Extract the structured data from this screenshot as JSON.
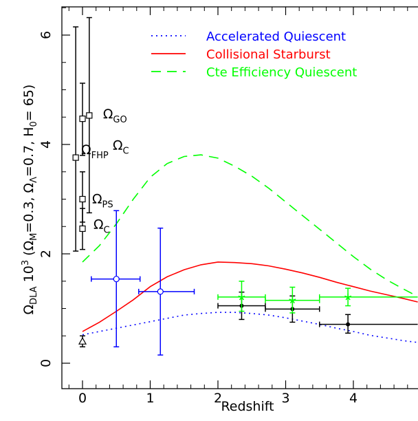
{
  "chart_data": {
    "type": "scatter",
    "xlabel": "Redshift",
    "ylabel": {
      "main": "Ω",
      "main_sub": "DLA",
      "rest": " 10",
      "rest_sup": "3",
      "params": " (Ω",
      "p1_sub": "M",
      "p1_val": "=0.3, Ω",
      "p2_sub": "Λ",
      "p2_val": "=0.7, H",
      "p3_sub": "0",
      "p3_val": "= 65)"
    },
    "xlim": [
      -0.25,
      4.95
    ],
    "ylim": [
      0,
      6.5
    ],
    "xticks": [
      0,
      1,
      2,
      3,
      4
    ],
    "yticks": [
      0,
      2,
      4,
      6
    ],
    "legend_position": "top-right",
    "series": [
      {
        "name": "Accelerated Quiescent",
        "color": "#0000ff",
        "style": "dotted",
        "x": [
          0.0,
          0.25,
          0.5,
          0.75,
          1.0,
          1.25,
          1.5,
          1.75,
          2.0,
          2.25,
          2.5,
          2.75,
          3.0,
          3.25,
          3.5,
          3.75,
          4.0,
          4.25,
          4.5,
          4.75,
          4.95
        ],
        "y": [
          0.52,
          0.58,
          0.64,
          0.7,
          0.76,
          0.82,
          0.88,
          0.91,
          0.93,
          0.93,
          0.91,
          0.88,
          0.83,
          0.77,
          0.71,
          0.64,
          0.58,
          0.51,
          0.46,
          0.41,
          0.38
        ]
      },
      {
        "name": "Collisional Starburst",
        "color": "#ff0000",
        "style": "solid",
        "x": [
          0.0,
          0.25,
          0.5,
          0.75,
          1.0,
          1.25,
          1.5,
          1.75,
          2.0,
          2.25,
          2.5,
          2.75,
          3.0,
          3.25,
          3.5,
          3.75,
          4.0,
          4.25,
          4.5,
          4.75,
          4.95
        ],
        "y": [
          0.58,
          0.75,
          0.95,
          1.16,
          1.4,
          1.58,
          1.71,
          1.8,
          1.85,
          1.84,
          1.82,
          1.78,
          1.72,
          1.65,
          1.57,
          1.48,
          1.4,
          1.32,
          1.25,
          1.18,
          1.12
        ]
      },
      {
        "name": "Cte Efficiency Quiescent",
        "color": "#00ff00",
        "style": "dashed",
        "x": [
          0.0,
          0.25,
          0.5,
          0.75,
          1.0,
          1.25,
          1.5,
          1.75,
          2.0,
          2.25,
          2.5,
          2.75,
          3.0,
          3.25,
          3.5,
          3.75,
          4.0,
          4.25,
          4.5,
          4.75,
          4.95
        ],
        "y": [
          1.85,
          2.15,
          2.55,
          3.0,
          3.4,
          3.65,
          3.78,
          3.81,
          3.75,
          3.6,
          3.42,
          3.2,
          2.95,
          2.7,
          2.45,
          2.2,
          1.95,
          1.72,
          1.52,
          1.35,
          1.22
        ]
      }
    ],
    "points": [
      {
        "group": "local",
        "marker": "square",
        "color": "#000000",
        "label": "GO",
        "x": 0.1,
        "y": 4.53,
        "ylo": 2.75,
        "yhi": 6.32
      },
      {
        "group": "local",
        "marker": "square",
        "color": "#000000",
        "label": "C",
        "x": 0.0,
        "y": 4.47,
        "ylo": 3.8,
        "yhi": 5.12
      },
      {
        "group": "local",
        "marker": "square",
        "color": "#000000",
        "label": "FHP",
        "x": -0.1,
        "y": 3.76,
        "ylo": 2.05,
        "yhi": 6.15
      },
      {
        "group": "local",
        "marker": "square",
        "color": "#000000",
        "label": "PS",
        "x": 0.0,
        "y": 3.0,
        "ylo": 2.58,
        "yhi": 3.5
      },
      {
        "group": "local",
        "marker": "square",
        "color": "#000000",
        "label": "C",
        "x": 0.0,
        "y": 2.46,
        "ylo": 2.08,
        "yhi": 2.83
      },
      {
        "group": "local",
        "marker": "triangle",
        "color": "#000000",
        "x": 0.0,
        "y": 0.4,
        "ylo": 0.3,
        "yhi": 0.5
      },
      {
        "group": "blue",
        "marker": "circle",
        "color": "#0000ff",
        "x": 0.5,
        "y": 1.54,
        "xlo": 0.13,
        "xhi": 0.85,
        "ylo": 0.3,
        "yhi": 2.79
      },
      {
        "group": "blue",
        "marker": "circle",
        "color": "#0000ff",
        "x": 1.15,
        "y": 1.31,
        "xlo": 0.83,
        "xhi": 1.65,
        "ylo": 0.15,
        "yhi": 2.47
      },
      {
        "group": "black",
        "marker": "dot",
        "color": "#000000",
        "x": 2.35,
        "y": 1.05,
        "xlo": 2.0,
        "xhi": 2.7,
        "ylo": 0.8,
        "yhi": 1.3
      },
      {
        "group": "black",
        "marker": "dot",
        "color": "#000000",
        "x": 3.1,
        "y": 0.99,
        "xlo": 2.7,
        "xhi": 3.5,
        "ylo": 0.75,
        "yhi": 1.23
      },
      {
        "group": "black",
        "marker": "dot",
        "color": "#000000",
        "x": 3.92,
        "y": 0.71,
        "xlo": 3.5,
        "xhi": 4.95,
        "ylo": 0.55,
        "yhi": 0.89
      },
      {
        "group": "green",
        "marker": "star",
        "color": "#00ff00",
        "x": 2.35,
        "y": 1.21,
        "xlo": 2.0,
        "xhi": 2.7,
        "ylo": 0.95,
        "yhi": 1.5
      },
      {
        "group": "green",
        "marker": "star",
        "color": "#00ff00",
        "x": 3.1,
        "y": 1.15,
        "xlo": 2.7,
        "xhi": 3.5,
        "ylo": 0.92,
        "yhi": 1.39
      },
      {
        "group": "green",
        "marker": "star",
        "color": "#00ff00",
        "x": 3.92,
        "y": 1.21,
        "xlo": 3.5,
        "xhi": 4.95,
        "ylo": 1.05,
        "yhi": 1.37
      }
    ],
    "omega_symbol": "Ω"
  }
}
